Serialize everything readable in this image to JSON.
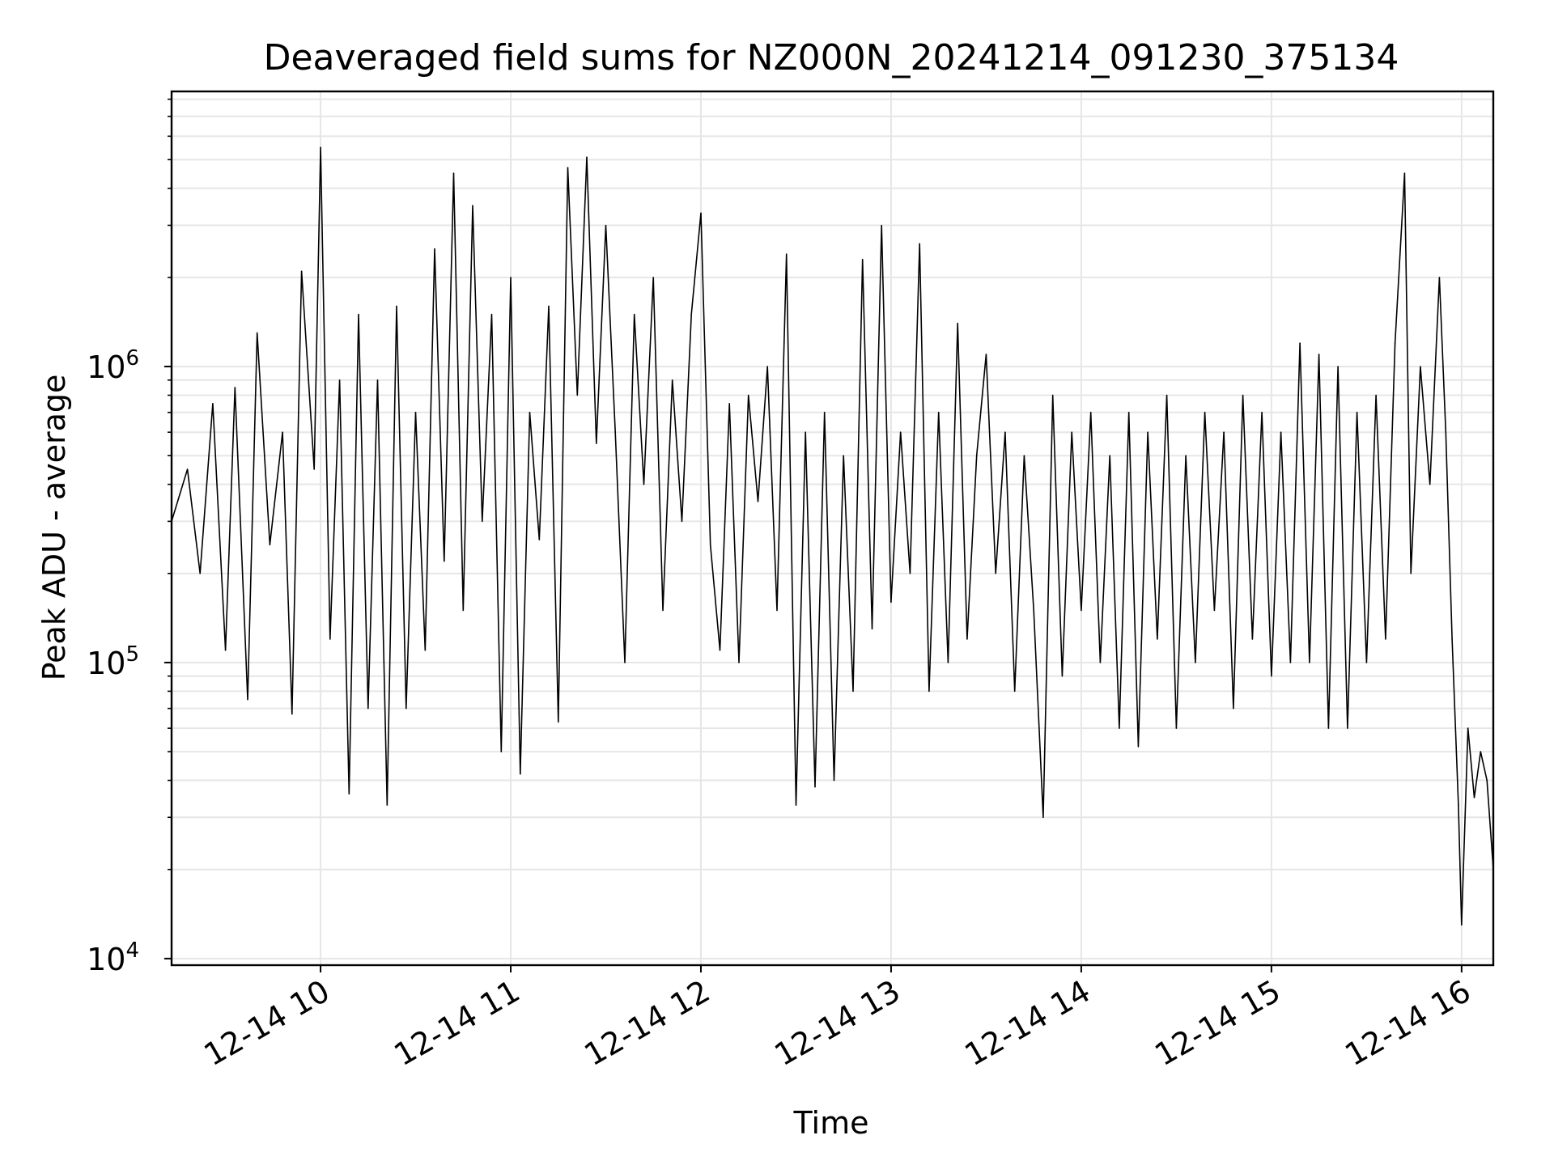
{
  "chart_data": {
    "type": "line",
    "title": "Deaveraged field sums for NZ000N_20241214_091230_375134",
    "xlabel": "Time",
    "ylabel": "Peak ADU - average",
    "yscale": "log",
    "ylim": [
      9500,
      8500000
    ],
    "xlim": [
      "12-14 09:13",
      "12-14 16:10"
    ],
    "grid": true,
    "line_color": "#000000",
    "grid_color": "#e6e6e6",
    "x_ticks": [
      {
        "value": "12-14 10:00",
        "label": "12-14 10"
      },
      {
        "value": "12-14 11:00",
        "label": "12-14 11"
      },
      {
        "value": "12-14 12:00",
        "label": "12-14 12"
      },
      {
        "value": "12-14 13:00",
        "label": "12-14 13"
      },
      {
        "value": "12-14 14:00",
        "label": "12-14 14"
      },
      {
        "value": "12-14 15:00",
        "label": "12-14 15"
      },
      {
        "value": "12-14 16:00",
        "label": "12-14 16"
      }
    ],
    "y_ticks": [
      {
        "value": 10000,
        "base": "10",
        "exp": "4"
      },
      {
        "value": 100000,
        "base": "10",
        "exp": "5"
      },
      {
        "value": 1000000,
        "base": "10",
        "exp": "6"
      }
    ],
    "series": [
      {
        "color": "#000000",
        "points": [
          [
            "12-14 09:13",
            300000
          ],
          [
            "12-14 09:18",
            450000
          ],
          [
            "12-14 09:22",
            200000
          ],
          [
            "12-14 09:26",
            750000
          ],
          [
            "12-14 09:30",
            110000
          ],
          [
            "12-14 09:33",
            850000
          ],
          [
            "12-14 09:37",
            75000
          ],
          [
            "12-14 09:40",
            1300000
          ],
          [
            "12-14 09:44",
            250000
          ],
          [
            "12-14 09:48",
            600000
          ],
          [
            "12-14 09:51",
            67000
          ],
          [
            "12-14 09:54",
            2100000
          ],
          [
            "12-14 09:58",
            450000
          ],
          [
            "12-14 10:00",
            5500000
          ],
          [
            "12-14 10:03",
            120000
          ],
          [
            "12-14 10:06",
            900000
          ],
          [
            "12-14 10:09",
            36000
          ],
          [
            "12-14 10:12",
            1500000
          ],
          [
            "12-14 10:15",
            70000
          ],
          [
            "12-14 10:18",
            900000
          ],
          [
            "12-14 10:21",
            33000
          ],
          [
            "12-14 10:24",
            1600000
          ],
          [
            "12-14 10:27",
            70000
          ],
          [
            "12-14 10:30",
            700000
          ],
          [
            "12-14 10:33",
            110000
          ],
          [
            "12-14 10:36",
            2500000
          ],
          [
            "12-14 10:39",
            220000
          ],
          [
            "12-14 10:42",
            4500000
          ],
          [
            "12-14 10:45",
            150000
          ],
          [
            "12-14 10:48",
            3500000
          ],
          [
            "12-14 10:51",
            300000
          ],
          [
            "12-14 10:54",
            1500000
          ],
          [
            "12-14 10:57",
            50000
          ],
          [
            "12-14 11:00",
            2000000
          ],
          [
            "12-14 11:03",
            42000
          ],
          [
            "12-14 11:06",
            700000
          ],
          [
            "12-14 11:09",
            260000
          ],
          [
            "12-14 11:12",
            1600000
          ],
          [
            "12-14 11:15",
            63000
          ],
          [
            "12-14 11:18",
            4700000
          ],
          [
            "12-14 11:21",
            800000
          ],
          [
            "12-14 11:24",
            5100000
          ],
          [
            "12-14 11:27",
            550000
          ],
          [
            "12-14 11:30",
            3000000
          ],
          [
            "12-14 11:33",
            600000
          ],
          [
            "12-14 11:36",
            100000
          ],
          [
            "12-14 11:39",
            1500000
          ],
          [
            "12-14 11:42",
            400000
          ],
          [
            "12-14 11:45",
            2000000
          ],
          [
            "12-14 11:48",
            150000
          ],
          [
            "12-14 11:51",
            900000
          ],
          [
            "12-14 11:54",
            300000
          ],
          [
            "12-14 11:57",
            1500000
          ],
          [
            "12-14 12:00",
            3300000
          ],
          [
            "12-14 12:03",
            250000
          ],
          [
            "12-14 12:06",
            110000
          ],
          [
            "12-14 12:09",
            750000
          ],
          [
            "12-14 12:12",
            100000
          ],
          [
            "12-14 12:15",
            800000
          ],
          [
            "12-14 12:18",
            350000
          ],
          [
            "12-14 12:21",
            1000000
          ],
          [
            "12-14 12:24",
            150000
          ],
          [
            "12-14 12:27",
            2400000
          ],
          [
            "12-14 12:30",
            33000
          ],
          [
            "12-14 12:33",
            600000
          ],
          [
            "12-14 12:36",
            38000
          ],
          [
            "12-14 12:39",
            700000
          ],
          [
            "12-14 12:42",
            40000
          ],
          [
            "12-14 12:45",
            500000
          ],
          [
            "12-14 12:48",
            80000
          ],
          [
            "12-14 12:51",
            2300000
          ],
          [
            "12-14 12:54",
            130000
          ],
          [
            "12-14 12:57",
            3000000
          ],
          [
            "12-14 13:00",
            160000
          ],
          [
            "12-14 13:03",
            600000
          ],
          [
            "12-14 13:06",
            200000
          ],
          [
            "12-14 13:09",
            2600000
          ],
          [
            "12-14 13:12",
            80000
          ],
          [
            "12-14 13:15",
            700000
          ],
          [
            "12-14 13:18",
            100000
          ],
          [
            "12-14 13:21",
            1400000
          ],
          [
            "12-14 13:24",
            120000
          ],
          [
            "12-14 13:27",
            500000
          ],
          [
            "12-14 13:30",
            1100000
          ],
          [
            "12-14 13:33",
            200000
          ],
          [
            "12-14 13:36",
            600000
          ],
          [
            "12-14 13:39",
            80000
          ],
          [
            "12-14 13:42",
            500000
          ],
          [
            "12-14 13:45",
            150000
          ],
          [
            "12-14 13:48",
            30000
          ],
          [
            "12-14 13:51",
            800000
          ],
          [
            "12-14 13:54",
            90000
          ],
          [
            "12-14 13:57",
            600000
          ],
          [
            "12-14 14:00",
            150000
          ],
          [
            "12-14 14:03",
            700000
          ],
          [
            "12-14 14:06",
            100000
          ],
          [
            "12-14 14:09",
            500000
          ],
          [
            "12-14 14:12",
            60000
          ],
          [
            "12-14 14:15",
            700000
          ],
          [
            "12-14 14:18",
            52000
          ],
          [
            "12-14 14:21",
            600000
          ],
          [
            "12-14 14:24",
            120000
          ],
          [
            "12-14 14:27",
            800000
          ],
          [
            "12-14 14:30",
            60000
          ],
          [
            "12-14 14:33",
            500000
          ],
          [
            "12-14 14:36",
            100000
          ],
          [
            "12-14 14:39",
            700000
          ],
          [
            "12-14 14:42",
            150000
          ],
          [
            "12-14 14:45",
            600000
          ],
          [
            "12-14 14:48",
            70000
          ],
          [
            "12-14 14:51",
            800000
          ],
          [
            "12-14 14:54",
            120000
          ],
          [
            "12-14 14:57",
            700000
          ],
          [
            "12-14 15:00",
            90000
          ],
          [
            "12-14 15:03",
            600000
          ],
          [
            "12-14 15:06",
            100000
          ],
          [
            "12-14 15:09",
            1200000
          ],
          [
            "12-14 15:12",
            100000
          ],
          [
            "12-14 15:15",
            1100000
          ],
          [
            "12-14 15:18",
            60000
          ],
          [
            "12-14 15:21",
            1000000
          ],
          [
            "12-14 15:24",
            60000
          ],
          [
            "12-14 15:27",
            700000
          ],
          [
            "12-14 15:30",
            100000
          ],
          [
            "12-14 15:33",
            800000
          ],
          [
            "12-14 15:36",
            120000
          ],
          [
            "12-14 15:39",
            1200000
          ],
          [
            "12-14 15:42",
            4500000
          ],
          [
            "12-14 15:44",
            200000
          ],
          [
            "12-14 15:47",
            1000000
          ],
          [
            "12-14 15:50",
            400000
          ],
          [
            "12-14 15:53",
            2000000
          ],
          [
            "12-14 15:55",
            600000
          ],
          [
            "12-14 15:57",
            120000
          ],
          [
            "12-14 15:59",
            33000
          ],
          [
            "12-14 16:00",
            13000
          ],
          [
            "12-14 16:02",
            60000
          ],
          [
            "12-14 16:04",
            35000
          ],
          [
            "12-14 16:06",
            50000
          ],
          [
            "12-14 16:08",
            40000
          ],
          [
            "12-14 16:10",
            20000
          ]
        ]
      }
    ]
  }
}
